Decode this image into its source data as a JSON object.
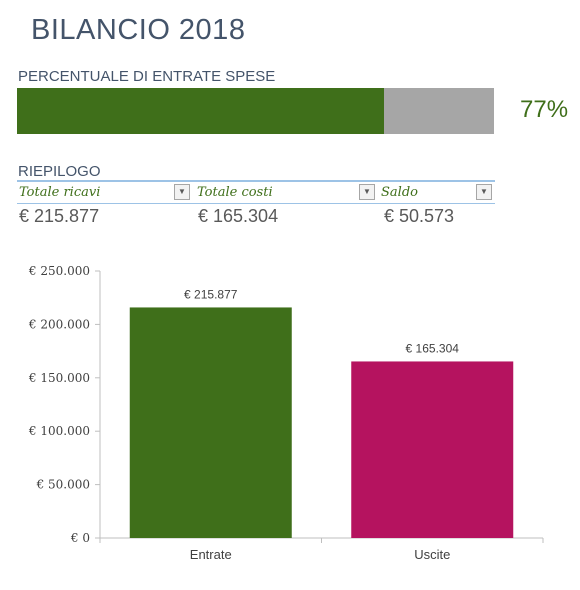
{
  "title": "BILANCIO 2018",
  "progress": {
    "label": "PERCENTUALE DI ENTRATE SPESE",
    "value_text": "77%",
    "fraction": 0.77,
    "fill_color": "#3f6f1a",
    "track_color": "#a6a6a6"
  },
  "summary": {
    "label": "RIEPILOGO",
    "headers": [
      "Totale ricavi",
      "Totale costi",
      "Saldo"
    ],
    "values": [
      "€ 215.877",
      "€ 165.304",
      "€ 50.573"
    ]
  },
  "chart_data": {
    "type": "bar",
    "categories": [
      "Entrate",
      "Uscite"
    ],
    "values": [
      215877,
      165304
    ],
    "data_labels": [
      "€ 215.877",
      "€ 165.304"
    ],
    "colors": [
      "#3f6f1a",
      "#b5135f"
    ],
    "ylim": [
      0,
      250000
    ],
    "yticks": [
      0,
      50000,
      100000,
      150000,
      200000,
      250000
    ],
    "ytick_labels": [
      "€ 0",
      "€ 50.000",
      "€ 100.000",
      "€ 150.000",
      "€ 200.000",
      "€ 250.000"
    ],
    "title": "",
    "xlabel": "",
    "ylabel": "",
    "grid": false
  }
}
